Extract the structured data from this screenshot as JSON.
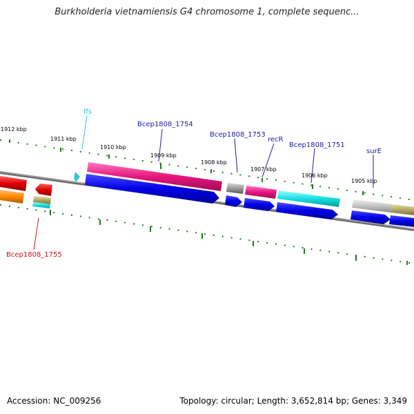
{
  "header": {
    "title": "Burkholderia vietnamiensis G4 chromosome 1, complete sequenc..."
  },
  "footer": {
    "accession": "Accession: NC_009256",
    "summary": "Topology: circular; Length: 3,652,814 bp; Genes: 3,349"
  },
  "scale_labels": [
    "1912 kbp",
    "1911 kbp",
    "1910 kbp",
    "1909 kbp",
    "1908 kbp",
    "1907 kbp",
    "1906 kbp",
    "1905 kbp"
  ],
  "gene_labels": [
    {
      "text": "ffs",
      "color": "#33c3e0"
    },
    {
      "text": "Bcep1808_1754",
      "color": "#1a1aa8"
    },
    {
      "text": "Bcep1808_1753",
      "color": "#1a1aa8"
    },
    {
      "text": "recR",
      "color": "#1a1aa8"
    },
    {
      "text": "Bcep1808_1751",
      "color": "#1a1aa8"
    },
    {
      "text": "surE",
      "color": "#1a1aa8"
    },
    {
      "text": "Bcep1808_1755",
      "color": "#cc1111"
    }
  ],
  "colors": {
    "backbone": "#6e6e6e",
    "tick": "#1a7a1a",
    "cds": "#0000e6",
    "gene_pink": "#e8157e",
    "rna_cyan": "#14e0e0",
    "gene_red": "#e00000",
    "gene_orange": "#ff8a00",
    "gene_olive": "#b3a964",
    "gene_gray": "#9a9a9a"
  }
}
